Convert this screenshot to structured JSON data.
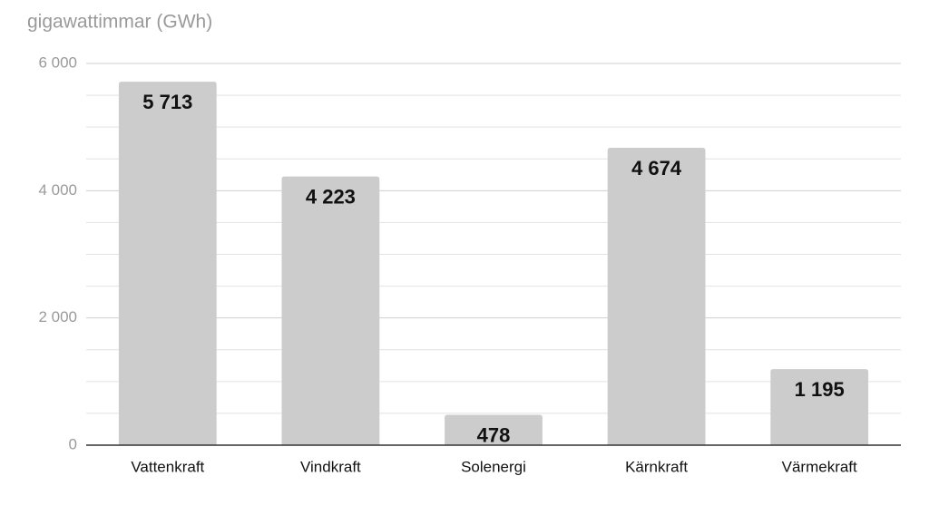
{
  "chart_data": {
    "type": "bar",
    "title": "gigawattimmar (GWh)",
    "categories": [
      "Vattenkraft",
      "Vindkraft",
      "Solenergi",
      "Kärnkraft",
      "Värmekraft"
    ],
    "values": [
      5713,
      4223,
      478,
      4674,
      1195
    ],
    "value_labels": [
      "5 713",
      "4 223",
      "478",
      "4 674",
      "1 195"
    ],
    "color": "#cccccc",
    "ylim": [
      0,
      6000
    ],
    "yticks": [
      0,
      {
        "value": 2000,
        "label": "2 000"
      },
      {
        "value": 4000,
        "label": "4 000"
      },
      {
        "value": 6000,
        "label": "6 000"
      }
    ],
    "minor_yticks": [
      500,
      1000,
      1500,
      2500,
      3000,
      3500,
      4500,
      5000,
      5500
    ],
    "grid": true
  }
}
